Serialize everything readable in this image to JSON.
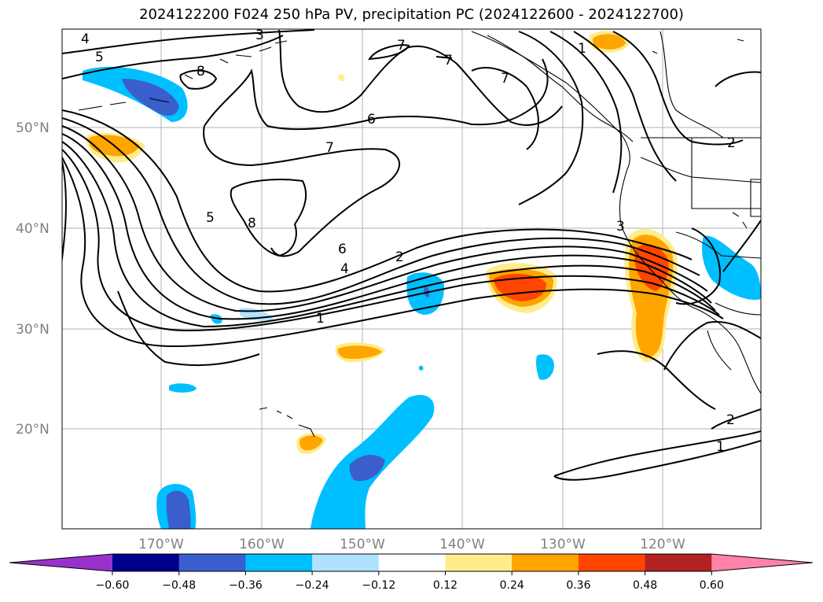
{
  "title": "2024122200 F024 250 hPa PV, precipitation PC (2024122600 - 2024122700)",
  "map": {
    "lat_labels": [
      "50°N",
      "40°N",
      "30°N",
      "20°N"
    ],
    "lon_labels": [
      "170°W",
      "160°W",
      "150°W",
      "140°W",
      "130°W",
      "120°W"
    ],
    "contour_labels": [
      "4",
      "5",
      "8",
      "3",
      "7",
      "7",
      "1",
      "7",
      "6",
      "7",
      "5",
      "8",
      "6",
      "4",
      "2",
      "1",
      "3",
      "2",
      "1",
      "2"
    ]
  },
  "colorbar": {
    "ticks": [
      "−0.60",
      "−0.48",
      "−0.36",
      "−0.24",
      "−0.12",
      "0.12",
      "0.24",
      "0.36",
      "0.48",
      "0.60"
    ],
    "colors": [
      "#9932cc",
      "#00008b",
      "#3a5fcd",
      "#00bfff",
      "#b0e2ff",
      "#ffffff",
      "#ffec8b",
      "#ffa500",
      "#ff4500",
      "#b22222",
      "#ff83a8"
    ]
  }
}
